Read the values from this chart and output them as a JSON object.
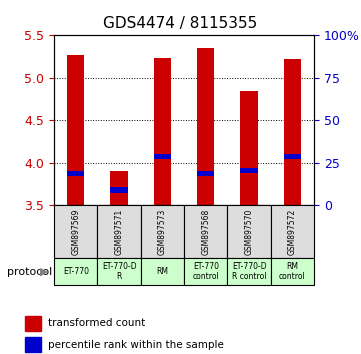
{
  "title": "GDS4474 / 8115355",
  "samples": [
    "GSM897569",
    "GSM897571",
    "GSM897573",
    "GSM897568",
    "GSM897570",
    "GSM897572"
  ],
  "bar_bottom": [
    3.5,
    3.5,
    3.5,
    3.5,
    3.5,
    3.5
  ],
  "bar_top": [
    5.27,
    3.9,
    5.23,
    5.35,
    4.85,
    5.22
  ],
  "percentile_y": [
    3.87,
    3.68,
    4.07,
    3.87,
    3.91,
    4.07
  ],
  "ylim": [
    3.5,
    5.5
  ],
  "yticks_left": [
    3.5,
    4.0,
    4.5,
    5.0,
    5.5
  ],
  "yticks_right": [
    0,
    25,
    50,
    75,
    100
  ],
  "ylabel_left_color": "#cc0000",
  "ylabel_right_color": "#0000cc",
  "bar_color": "#cc0000",
  "percentile_color": "#0000cc",
  "grid_color": "#000000",
  "protocols": [
    "ET-770",
    "ET-770-D\nR",
    "RM",
    "ET-770\ncontrol",
    "ET-770-D\nR control",
    "RM\ncontrol"
  ],
  "protocol_bg": "#ccffcc",
  "sample_bg": "#dddddd",
  "legend_labels": [
    "transformed count",
    "percentile rank within the sample"
  ],
  "legend_colors": [
    "#cc0000",
    "#0000cc"
  ],
  "protocol_label": "protocol",
  "bar_width": 0.4
}
